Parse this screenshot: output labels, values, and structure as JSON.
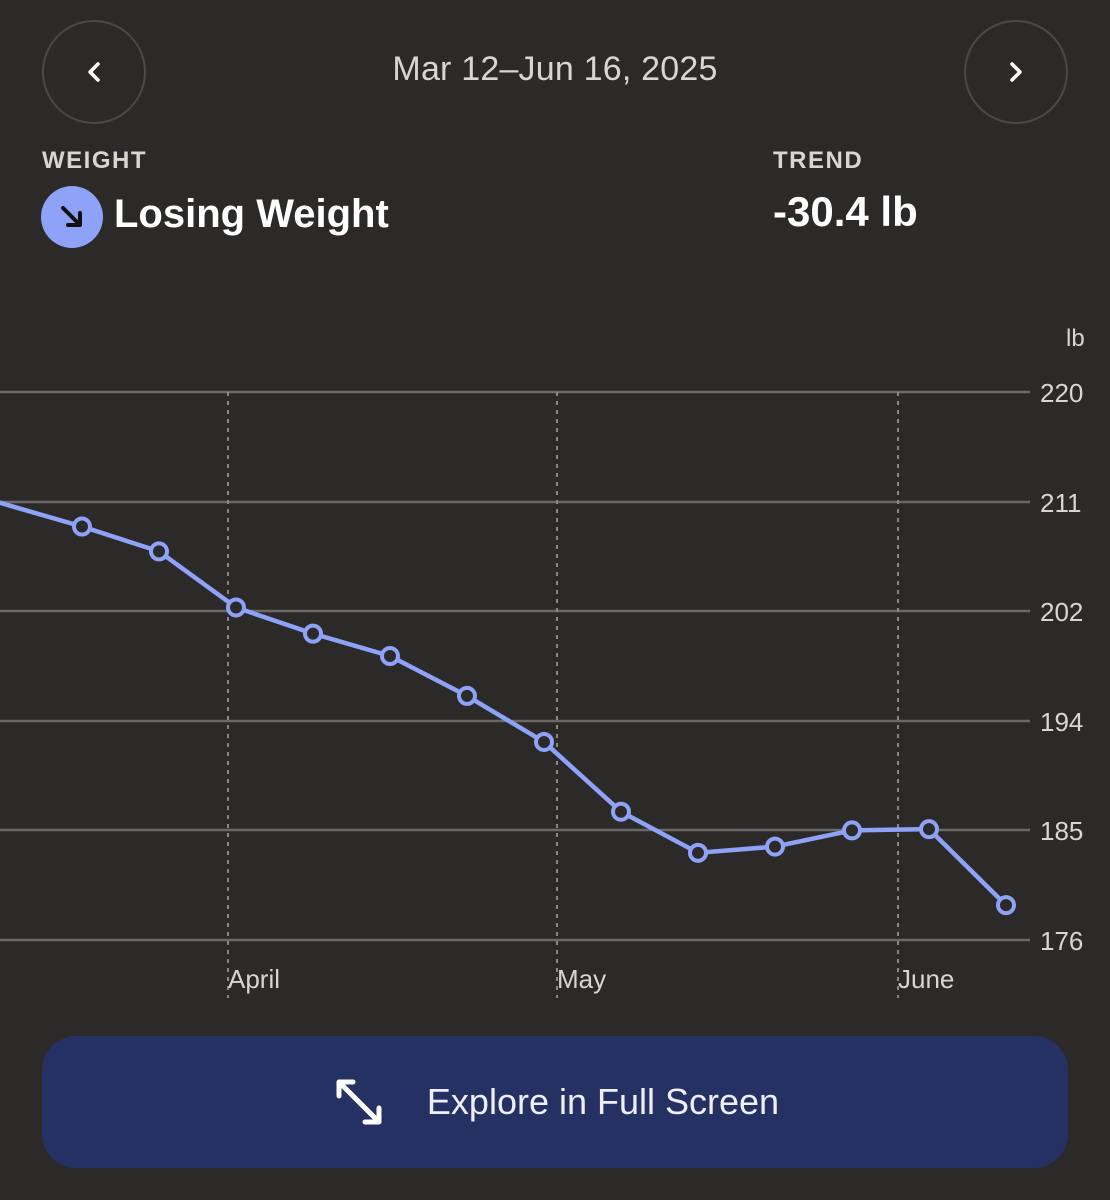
{
  "header": {
    "date_range": "Mar 12–Jun 16, 2025",
    "prev_icon": "chevron-left-icon",
    "next_icon": "chevron-right-icon"
  },
  "summary": {
    "weight_label": "WEIGHT",
    "status": "Losing Weight",
    "status_icon": "arrow-down-right-icon",
    "status_color": "#8ea2f8",
    "trend_label": "TREND",
    "trend_value": "-30.4 lb"
  },
  "chart_data": {
    "type": "line",
    "unit_label": "lb",
    "y_ticks": [
      "220",
      "211",
      "202",
      "194",
      "185",
      "176"
    ],
    "ylim": [
      176,
      220
    ],
    "x_tick_labels": [
      "April",
      "May",
      "June"
    ],
    "series": [
      {
        "color": "#8ea2f8",
        "values": [
          211.1,
          209.2,
          207.2,
          202.7,
          200.6,
          198.8,
          195.6,
          191.9,
          186.3,
          183.0,
          183.5,
          184.8,
          184.9,
          178.8
        ],
        "trailing_start": 211.1
      }
    ],
    "grid": "horizontal solid at ticks, vertical dashed at month starts"
  },
  "action": {
    "label": "Explore in Full Screen",
    "icon": "expand-diagonal-icon",
    "bg_color": "#263163"
  }
}
